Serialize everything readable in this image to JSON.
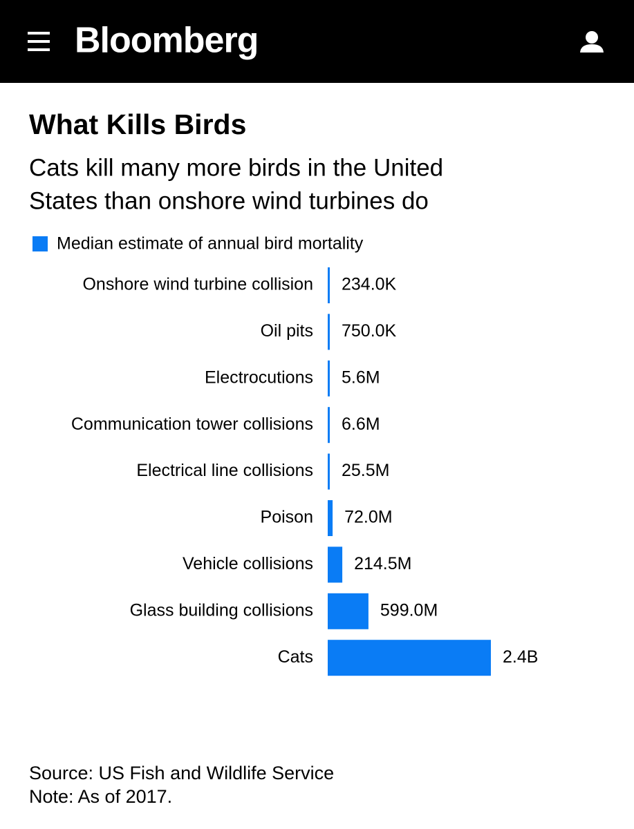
{
  "header": {
    "brand": "Bloomberg"
  },
  "chart_data": {
    "type": "bar",
    "orientation": "horizontal",
    "title": "What Kills Birds",
    "subtitle": [
      "Cats kill many more birds in the United",
      "States than onshore wind turbines do"
    ],
    "categories": [
      "Onshore wind turbine collision",
      "Oil pits",
      "Electrocutions",
      "Communication tower collisions",
      "Electrical line collisions",
      "Poison",
      "Vehicle collisions",
      "Glass building collisions",
      "Cats"
    ],
    "series": [
      {
        "name": "Median estimate of annual bird mortality",
        "color": "#0a7cf5",
        "values": [
          234000,
          750000,
          5600000,
          6600000,
          25500000,
          72000000,
          214500000,
          599000000,
          2400000000
        ],
        "value_labels": [
          "234.0K",
          "750.0K",
          "5.6M",
          "6.6M",
          "25.5M",
          "72.0M",
          "214.5M",
          "599.0M",
          "2.4B"
        ]
      }
    ],
    "legend": "top-left",
    "notes": [
      "Source: US Fish and Wildlife Service",
      "Note: As of 2017."
    ]
  }
}
